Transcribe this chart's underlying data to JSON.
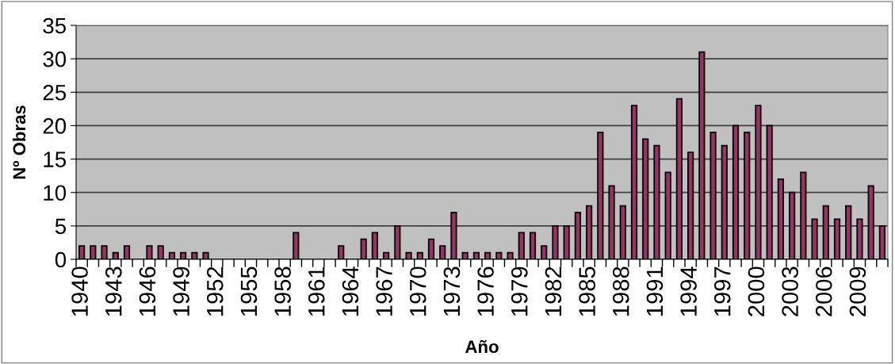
{
  "chart_data": {
    "type": "bar",
    "xlabel": "Año",
    "ylabel": "Nº Obras",
    "categories": [
      "1940",
      null,
      null,
      "1943",
      null,
      null,
      "1946",
      null,
      null,
      "1949",
      null,
      null,
      "1952",
      null,
      null,
      "1955",
      null,
      null,
      "1958",
      null,
      null,
      "1961",
      null,
      null,
      "1964",
      null,
      null,
      "1967",
      null,
      null,
      "1970",
      null,
      null,
      "1973",
      null,
      null,
      "1976",
      null,
      null,
      "1979",
      null,
      null,
      "1982",
      null,
      null,
      "1985",
      null,
      null,
      "1988",
      null,
      null,
      "1991",
      null,
      null,
      "1994",
      null,
      null,
      "1997",
      null,
      null,
      "2000",
      null,
      null,
      "2003",
      null,
      null,
      "2006",
      null,
      null,
      "2009",
      null,
      null
    ],
    "values": [
      2,
      2,
      2,
      1,
      2,
      0,
      2,
      2,
      1,
      1,
      1,
      1,
      0,
      0,
      0,
      0,
      0,
      0,
      0,
      4,
      0,
      0,
      0,
      2,
      0,
      3,
      4,
      1,
      5,
      1,
      1,
      3,
      2,
      7,
      1,
      1,
      1,
      1,
      1,
      4,
      4,
      2,
      5,
      5,
      7,
      8,
      19,
      11,
      8,
      23,
      18,
      17,
      13,
      24,
      16,
      31,
      19,
      17,
      20,
      19,
      23,
      20,
      12,
      10,
      13,
      6,
      8,
      6,
      8,
      6,
      11,
      5
    ],
    "color": "#993366",
    "ylim": [
      0,
      35
    ],
    "yticks": [
      0,
      5,
      10,
      15,
      20,
      25,
      30,
      35
    ],
    "grid": "y",
    "legend": false
  }
}
